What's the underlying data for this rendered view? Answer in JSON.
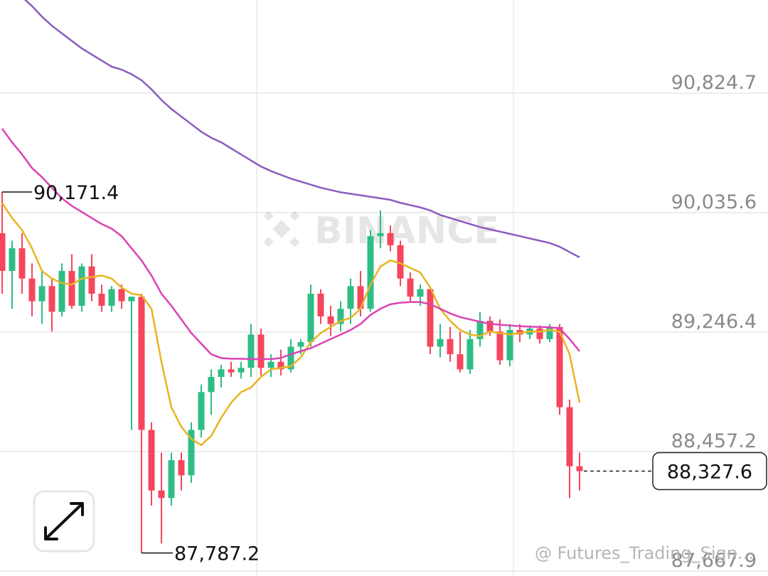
{
  "chart_data": {
    "type": "candlestick",
    "ylim": [
      87635,
      91440
    ],
    "yticks": [
      {
        "value": 90824.7,
        "label": "90,824.7"
      },
      {
        "value": 90035.6,
        "label": "90,035.6"
      },
      {
        "value": 89246.4,
        "label": "89,246.4"
      },
      {
        "value": 88457.2,
        "label": "88,457.2"
      },
      {
        "value": 87667.9,
        "label": "87,667.9"
      }
    ],
    "grid": true,
    "up_color": "#2ebd85",
    "down_color": "#f6465d",
    "open": [
      89900,
      89650,
      89800,
      89600,
      89450,
      89550,
      89380,
      89650,
      89420,
      89680,
      89500,
      89420,
      89530,
      89450,
      89480,
      88600,
      88200,
      88150,
      88400,
      88300,
      88600,
      88850,
      88950,
      89000,
      88980,
      89010,
      89230,
      89010,
      89050,
      89000,
      89150,
      89180,
      89500,
      89350,
      89300,
      89400,
      89550,
      89400,
      89880,
      89900,
      89820,
      89600,
      89480,
      89530,
      89150,
      89200,
      89100,
      89000,
      89200,
      89320,
      89250,
      89060,
      89260,
      89230,
      89270,
      89200,
      89280,
      88750,
      88360
    ],
    "high": [
      90171.4,
      89850,
      89900,
      89700,
      89650,
      89600,
      89700,
      89760,
      89700,
      89760,
      89560,
      89550,
      89560,
      89480,
      89500,
      88650,
      88450,
      88450,
      88450,
      88650,
      88900,
      89000,
      89030,
      89050,
      89050,
      89300,
      89270,
      89100,
      89130,
      89200,
      89200,
      89560,
      89530,
      89420,
      89450,
      89600,
      89650,
      89920,
      90050,
      89950,
      89850,
      89640,
      89560,
      89550,
      89300,
      89280,
      89250,
      89260,
      89380,
      89350,
      89330,
      89300,
      89300,
      89290,
      89290,
      89300,
      89300,
      88800,
      88450
    ],
    "low": [
      89500,
      89400,
      89500,
      89350,
      89300,
      89250,
      89350,
      89400,
      89380,
      89450,
      89380,
      89380,
      89400,
      88600,
      87787.2,
      88100,
      87850,
      88100,
      88200,
      88250,
      88550,
      88700,
      88880,
      88950,
      88940,
      88950,
      88960,
      88950,
      88960,
      88980,
      89100,
      89150,
      89300,
      89220,
      89250,
      89300,
      89350,
      89380,
      89800,
      89780,
      89550,
      89450,
      89420,
      89100,
      89080,
      89050,
      88980,
      88970,
      89150,
      89220,
      89030,
      89020,
      89180,
      89200,
      89170,
      89180,
      88700,
      88150,
      88200
    ],
    "close": [
      89650,
      89800,
      89600,
      89450,
      89550,
      89380,
      89650,
      89420,
      89680,
      89500,
      89420,
      89530,
      89450,
      89480,
      88600,
      88200,
      88150,
      88400,
      88300,
      88600,
      88850,
      88950,
      89000,
      88980,
      89010,
      89230,
      89010,
      89050,
      89000,
      89150,
      89180,
      89500,
      89350,
      89300,
      89400,
      89550,
      89400,
      89880,
      89900,
      89820,
      89600,
      89480,
      89530,
      89150,
      89200,
      89100,
      89000,
      89200,
      89320,
      89250,
      89060,
      89260,
      89230,
      89270,
      89200,
      89280,
      88750,
      88360,
      88327.6
    ],
    "lines": [
      {
        "color": "#e9b420",
        "values": [
          90100,
          90000,
          89920,
          89800,
          89650,
          89600,
          89570,
          89560,
          89600,
          89610,
          89620,
          89600,
          89540,
          89500,
          89490,
          89400,
          89050,
          88750,
          88620,
          88540,
          88500,
          88560,
          88680,
          88780,
          88850,
          88880,
          88950,
          89000,
          89010,
          89020,
          89080,
          89180,
          89240,
          89280,
          89320,
          89340,
          89400,
          89560,
          89680,
          89720,
          89700,
          89670,
          89640,
          89540,
          89400,
          89320,
          89260,
          89230,
          89220,
          89250,
          89240,
          89230,
          89240,
          89250,
          89250,
          89260,
          89250,
          89100,
          88780
        ]
      },
      {
        "color": "#dc42b4",
        "values": [
          90590,
          90500,
          90420,
          90330,
          90270,
          90200,
          90130,
          90080,
          90040,
          90000,
          89960,
          89930,
          89880,
          89800,
          89720,
          89620,
          89500,
          89420,
          89330,
          89240,
          89170,
          89100,
          89075,
          89070,
          89070,
          89068,
          89068,
          89068,
          89075,
          89100,
          89120,
          89140,
          89170,
          89200,
          89230,
          89260,
          89300,
          89360,
          89400,
          89430,
          89440,
          89445,
          89445,
          89430,
          89400,
          89370,
          89345,
          89330,
          89315,
          89300,
          89295,
          89290,
          89285,
          89282,
          89280,
          89278,
          89272,
          89200,
          89120
        ]
      },
      {
        "color": "#8a5cbf",
        "values": [
          91600,
          91530,
          91460,
          91400,
          91330,
          91270,
          91220,
          91170,
          91120,
          91080,
          91040,
          91000,
          90980,
          90950,
          90910,
          90850,
          90780,
          90720,
          90670,
          90620,
          90570,
          90530,
          90500,
          90460,
          90420,
          90380,
          90340,
          90310,
          90285,
          90260,
          90240,
          90220,
          90200,
          90185,
          90170,
          90160,
          90150,
          90140,
          90130,
          90120,
          90100,
          90085,
          90070,
          90050,
          90020,
          90000,
          89980,
          89960,
          89940,
          89925,
          89910,
          89895,
          89880,
          89865,
          89850,
          89835,
          89810,
          89775,
          89740
        ]
      }
    ],
    "high_marker": {
      "value": 90171.4,
      "label": "90,171.4"
    },
    "low_marker": {
      "value": 87787.2,
      "label": "87,787.2"
    },
    "last_price": {
      "value": 88327.6,
      "label": "88,327.6"
    },
    "watermark": "BINANCE",
    "footer": "@ Futures_Trading_Sign..."
  }
}
